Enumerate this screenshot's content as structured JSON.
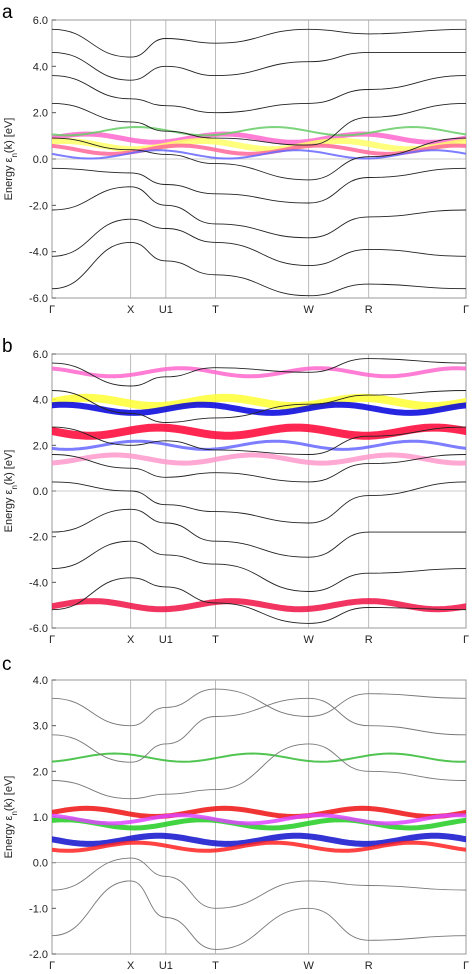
{
  "chart_data": [
    {
      "type": "line",
      "panel_label": "a",
      "ylabel": "Energy ε",
      "ylabel_sub": "n",
      "ylabel_rest": "(k)  [eV]",
      "ylim": [
        -6.0,
        6.0
      ],
      "yticks": [
        "6.0",
        "4.0",
        "2.0",
        "0.0",
        "-2.0",
        "-4.0",
        "-6.0"
      ],
      "ytick_values": [
        6,
        4,
        2,
        0,
        -2,
        -4,
        -6
      ],
      "kpoints": [
        "Γ",
        "X",
        "U1",
        "T",
        "W",
        "R",
        "Γ"
      ],
      "kpoint_positions": [
        0.0,
        0.19,
        0.275,
        0.395,
        0.62,
        0.765,
        1.0
      ],
      "grid": false,
      "bands": [
        {
          "x": [
            0,
            0.19,
            0.275,
            0.395,
            0.62,
            0.765,
            1
          ],
          "y": [
            -5.6,
            -3.6,
            -4.4,
            -5.0,
            -5.9,
            -5.4,
            -5.6
          ]
        },
        {
          "x": [
            0,
            0.19,
            0.275,
            0.395,
            0.62,
            0.765,
            1
          ],
          "y": [
            -4.2,
            -2.6,
            -3.0,
            -3.6,
            -4.6,
            -3.9,
            -4.2
          ]
        },
        {
          "x": [
            0,
            0.19,
            0.275,
            0.395,
            0.62,
            0.765,
            1
          ],
          "y": [
            -2.2,
            -1.2,
            -2.0,
            -2.8,
            -3.4,
            -2.5,
            -2.2
          ]
        },
        {
          "x": [
            0,
            0.19,
            0.275,
            0.395,
            0.62,
            0.765,
            1
          ],
          "y": [
            -0.4,
            -0.6,
            -1.1,
            -1.5,
            -1.9,
            -0.8,
            -0.4
          ]
        },
        {
          "x": [
            0,
            0.19,
            0.275,
            0.395,
            0.62,
            0.765,
            1
          ],
          "y": [
            0.9,
            0.4,
            0.2,
            -0.2,
            -0.9,
            0.1,
            0.9
          ]
        },
        {
          "x": [
            0,
            0.19,
            0.275,
            0.395,
            0.62,
            0.765,
            1
          ],
          "y": [
            2.4,
            1.6,
            1.2,
            0.9,
            0.6,
            1.8,
            2.4
          ]
        },
        {
          "x": [
            0,
            0.19,
            0.275,
            0.395,
            0.62,
            0.765,
            1
          ],
          "y": [
            3.6,
            2.6,
            2.3,
            2.0,
            2.4,
            3.0,
            3.6
          ]
        },
        {
          "x": [
            0,
            0.19,
            0.275,
            0.395,
            0.62,
            0.765,
            1
          ],
          "y": [
            4.6,
            3.4,
            4.0,
            3.6,
            4.2,
            4.6,
            4.6
          ]
        },
        {
          "x": [
            0,
            0.19,
            0.275,
            0.395,
            0.62,
            0.765,
            1
          ],
          "y": [
            5.6,
            4.4,
            5.2,
            5.0,
            5.6,
            5.4,
            5.6
          ]
        }
      ],
      "weighted_bands": [
        {
          "color": "#ff66cc",
          "y": 0.9,
          "width": 5
        },
        {
          "color": "#ffff66",
          "y": 0.6,
          "width": 6
        },
        {
          "color": "#ff6699",
          "y": 0.4,
          "width": 4
        },
        {
          "color": "#6666ff",
          "y": 0.2,
          "width": 2
        },
        {
          "color": "#66cc66",
          "y": 1.2,
          "width": 2
        }
      ]
    },
    {
      "type": "line",
      "panel_label": "b",
      "ylabel": "Energy ε",
      "ylabel_sub": "n",
      "ylabel_rest": "(k)  [eV]",
      "ylim": [
        -6.0,
        6.0
      ],
      "yticks": [
        "6.0",
        "4.0",
        "2.0",
        "0.0",
        "-2.0",
        "-4.0",
        "-6.0"
      ],
      "ytick_values": [
        6,
        4,
        2,
        0,
        -2,
        -4,
        -6
      ],
      "kpoints": [
        "Γ",
        "X",
        "U1",
        "T",
        "W",
        "R",
        "Γ"
      ],
      "kpoint_positions": [
        0.0,
        0.19,
        0.275,
        0.395,
        0.62,
        0.765,
        1.0
      ],
      "grid": false,
      "bands": [
        {
          "x": [
            0,
            0.19,
            0.275,
            0.395,
            0.62,
            0.765,
            1
          ],
          "y": [
            -5.2,
            -3.8,
            -4.2,
            -4.9,
            -5.8,
            -5.1,
            -5.2
          ]
        },
        {
          "x": [
            0,
            0.19,
            0.275,
            0.395,
            0.62,
            0.765,
            1
          ],
          "y": [
            -3.4,
            -2.2,
            -2.8,
            -3.2,
            -4.4,
            -3.6,
            -3.4
          ]
        },
        {
          "x": [
            0,
            0.19,
            0.275,
            0.395,
            0.62,
            0.765,
            1
          ],
          "y": [
            -1.8,
            -0.8,
            -1.4,
            -2.2,
            -2.9,
            -1.8,
            -1.8
          ]
        },
        {
          "x": [
            0,
            0.19,
            0.275,
            0.395,
            0.62,
            0.765,
            1
          ],
          "y": [
            0.4,
            0.0,
            -0.6,
            -0.9,
            -1.4,
            -0.2,
            0.4
          ]
        },
        {
          "x": [
            0,
            0.19,
            0.275,
            0.395,
            0.62,
            0.765,
            1
          ],
          "y": [
            1.6,
            1.0,
            0.6,
            0.8,
            0.4,
            1.2,
            1.6
          ]
        },
        {
          "x": [
            0,
            0.19,
            0.275,
            0.395,
            0.62,
            0.765,
            1
          ],
          "y": [
            2.8,
            2.0,
            2.2,
            1.8,
            1.6,
            2.4,
            2.8
          ]
        },
        {
          "x": [
            0,
            0.19,
            0.275,
            0.395,
            0.62,
            0.765,
            1
          ],
          "y": [
            4.4,
            3.4,
            3.0,
            3.2,
            3.8,
            4.2,
            4.4
          ]
        },
        {
          "x": [
            0,
            0.19,
            0.275,
            0.395,
            0.62,
            0.765,
            1
          ],
          "y": [
            5.6,
            4.6,
            5.0,
            5.4,
            5.2,
            5.8,
            5.6
          ]
        }
      ],
      "weighted_bands": [
        {
          "color": "#ffff33",
          "y": 3.9,
          "width": 8
        },
        {
          "color": "#0000dd",
          "y": 3.6,
          "width": 6
        },
        {
          "color": "#ff66cc",
          "y": 5.2,
          "width": 4
        },
        {
          "color": "#ff0033",
          "y": 2.6,
          "width": 8
        },
        {
          "color": "#6666ff",
          "y": 2.0,
          "width": 3
        },
        {
          "color": "#ff99cc",
          "y": 1.4,
          "width": 5
        },
        {
          "color": "#ee1144",
          "y": -5.0,
          "width": 6
        }
      ]
    },
    {
      "type": "line",
      "panel_label": "c",
      "ylabel": "Energy ε",
      "ylabel_sub": "n",
      "ylabel_rest": "(k)  [eV]",
      "ylim": [
        -2.0,
        4.0
      ],
      "yticks": [
        "4.0",
        "3.0",
        "2.0",
        "1.0",
        "0.0",
        "-1.0",
        "-2.0"
      ],
      "ytick_values": [
        4,
        3,
        2,
        1,
        0,
        -1,
        -2
      ],
      "kpoints": [
        "Γ",
        "X",
        "U1",
        "T",
        "W",
        "R",
        "Γ"
      ],
      "kpoint_positions": [
        0.0,
        0.19,
        0.275,
        0.395,
        0.62,
        0.765,
        1.0
      ],
      "grid": false,
      "bands": [
        {
          "x": [
            0,
            0.19,
            0.275,
            0.395,
            0.62,
            0.765,
            1
          ],
          "y": [
            -1.6,
            -0.4,
            -1.2,
            -1.9,
            -1.0,
            -1.7,
            -1.6
          ]
        },
        {
          "x": [
            0,
            0.19,
            0.275,
            0.395,
            0.62,
            0.765,
            1
          ],
          "y": [
            -0.6,
            0.1,
            -0.3,
            -1.0,
            -0.4,
            -0.5,
            -0.6
          ]
        },
        {
          "x": [
            0,
            0.19,
            0.275,
            0.395,
            0.62,
            0.765,
            1
          ],
          "y": [
            1.8,
            1.4,
            1.5,
            1.6,
            2.6,
            2.0,
            1.8
          ]
        },
        {
          "x": [
            0,
            0.19,
            0.275,
            0.395,
            0.62,
            0.765,
            1
          ],
          "y": [
            2.8,
            2.2,
            2.6,
            3.2,
            3.6,
            3.0,
            2.8
          ]
        },
        {
          "x": [
            0,
            0.19,
            0.275,
            0.395,
            0.62,
            0.765,
            1
          ],
          "y": [
            3.6,
            3.0,
            3.4,
            3.8,
            3.2,
            3.7,
            3.6
          ]
        }
      ],
      "weighted_bands": [
        {
          "color": "#ee1111",
          "y": 1.1,
          "width": 5
        },
        {
          "color": "#22cc22",
          "y": 0.85,
          "width": 5
        },
        {
          "color": "#dd44ff",
          "y": 0.95,
          "width": 4
        },
        {
          "color": "#1111cc",
          "y": 0.5,
          "width": 6
        },
        {
          "color": "#ff2222",
          "y": 0.35,
          "width": 4
        },
        {
          "color": "#33bb33",
          "y": 2.3,
          "width": 2
        }
      ]
    }
  ]
}
